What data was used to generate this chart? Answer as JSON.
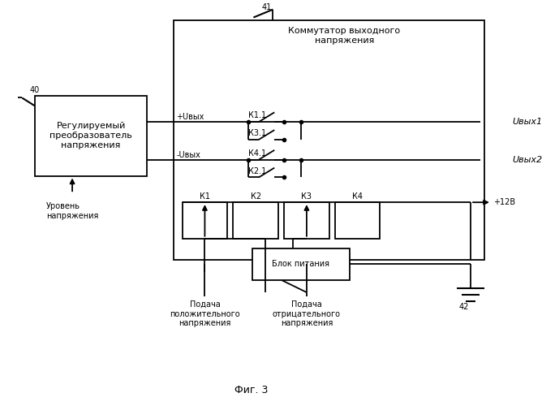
{
  "title": "Фиг. 3",
  "background": "#ffffff",
  "fig_width": 6.68,
  "fig_height": 5.0,
  "dpi": 100,
  "label_40": "40",
  "label_41": "41",
  "label_42": "42",
  "text_reg": "Регулируемый\nпреобразователь\nнапряжения",
  "text_comm": "Коммутатор выходного\nнапряжения",
  "text_uvyx1": "Uвых1",
  "text_uvyx2": "Uвых2",
  "text_plus12": "+12В",
  "text_plus_u": "+Uвых",
  "text_minus_u": "-Uвых",
  "text_k11": "К1.1",
  "text_k31": "К3.1",
  "text_k41": "К4.1",
  "text_k21": "К2.1",
  "text_k1": "К1",
  "text_k2": "К2",
  "text_k3": "К3",
  "text_k4": "К4",
  "text_blok": "Блок питания",
  "text_podacha_pos": "Подача\nположительного\nнапряжения",
  "text_podacha_neg": "Подача\nотрицательного\nнапряжения",
  "text_uroven": "Уровень\nнапряжения"
}
